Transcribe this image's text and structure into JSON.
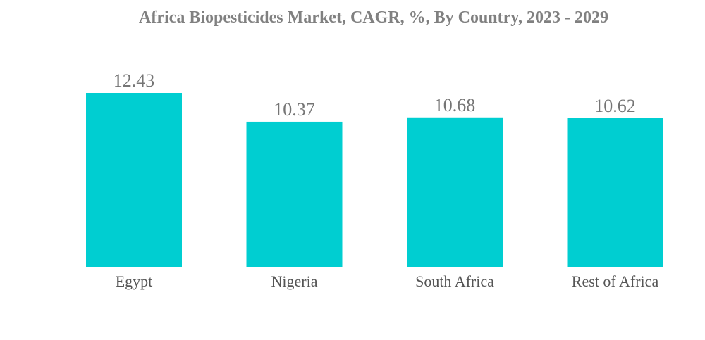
{
  "chart_data": {
    "type": "bar",
    "title": "Africa Biopesticides Market, CAGR, %, By Country, 2023 - 2029",
    "categories": [
      "Egypt",
      "Nigeria",
      "South Africa",
      "Rest of Africa"
    ],
    "values": [
      12.43,
      10.37,
      10.68,
      10.62
    ],
    "value_labels": [
      "12.43",
      "10.37",
      "10.68",
      "10.62"
    ],
    "bar_color": "#00CED1",
    "xlabel": "",
    "ylabel": "",
    "ylim": [
      0,
      12.43
    ],
    "grid": false,
    "legend": "none"
  }
}
